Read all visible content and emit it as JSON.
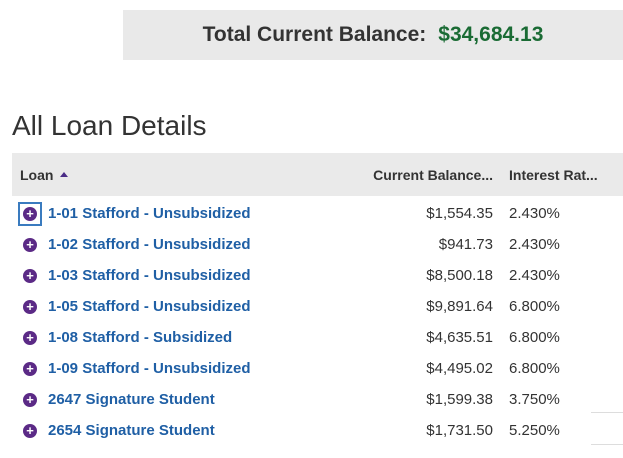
{
  "summary": {
    "total_label": "Total Current Balance:",
    "total_value": "$34,684.13"
  },
  "section_title": "All Loan Details",
  "table": {
    "columns": {
      "loan": "Loan",
      "balance": "Current Balance...",
      "rate": "Interest Rat..."
    },
    "sort": "ascending",
    "rows": [
      {
        "name": "1-01 Stafford - Unsubsidized",
        "balance": "$1,554.35",
        "rate": "2.430%"
      },
      {
        "name": "1-02 Stafford - Unsubsidized",
        "balance": "$941.73",
        "rate": "2.430%"
      },
      {
        "name": "1-03 Stafford - Unsubsidized",
        "balance": "$8,500.18",
        "rate": "2.430%"
      },
      {
        "name": "1-05 Stafford - Unsubsidized",
        "balance": "$9,891.64",
        "rate": "6.800%"
      },
      {
        "name": "1-08 Stafford - Subsidized",
        "balance": "$4,635.51",
        "rate": "6.800%"
      },
      {
        "name": "1-09 Stafford - Unsubsidized",
        "balance": "$4,495.02",
        "rate": "6.800%"
      },
      {
        "name": "2647 Signature Student",
        "balance": "$1,599.38",
        "rate": "3.750%"
      },
      {
        "name": "2654 Signature Student",
        "balance": "$1,731.50",
        "rate": "5.250%"
      }
    ]
  },
  "colors": {
    "total_value": "#1a6b34",
    "link": "#1f5fa5",
    "expand_icon": "#5b2a86"
  },
  "icons": {
    "expand": "plus-circle-icon",
    "sort": "sort-ascending-icon"
  }
}
